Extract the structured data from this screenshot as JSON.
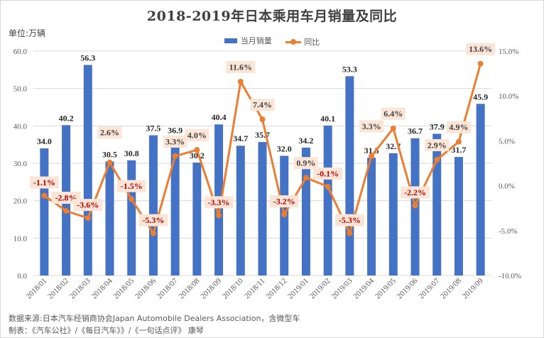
{
  "title": "2018-2019年日本乘用车月销量及同比",
  "unit_label": "单位:万辆",
  "legend": [
    {
      "name": "当月销量",
      "type": "bar"
    },
    {
      "name": "同比",
      "type": "line"
    }
  ],
  "colors": {
    "bar": "#4472c4",
    "line": "#ed7d31",
    "label_box": "#fbe5d6",
    "negative_label": "#c00000",
    "positive_label": "#404040",
    "grid": "#d9d9d9"
  },
  "footer": {
    "source": "数据来源:日本汽车经销商协会Japan Automobile Dealers Association，含微型车",
    "maker": "制表：《汽车公社》/《每日汽车》》/《一句话点评》 康琴"
  },
  "chart_data": {
    "type": "bar",
    "title": "2018-2019年日本乘用车月销量及同比",
    "xlabel": "",
    "ylabel": "单位:万辆",
    "categories": [
      "2018/01",
      "2018/02",
      "2018/03",
      "2018/04",
      "2018/05",
      "2018/06",
      "2018/07",
      "2018/08",
      "2018/09",
      "2018/10",
      "2018/11",
      "2018/12",
      "2019/01",
      "2019/02",
      "2019/03",
      "2019/04",
      "2019/05",
      "2019/06",
      "2019/07",
      "2019/08",
      "2019/09"
    ],
    "series": [
      {
        "name": "当月销量",
        "type": "bar",
        "axis": "left",
        "values": [
          34.0,
          40.2,
          56.3,
          30.5,
          30.8,
          37.5,
          36.9,
          30.2,
          40.4,
          34.7,
          35.7,
          32.0,
          34.2,
          40.1,
          53.3,
          31.5,
          32.7,
          36.7,
          37.9,
          31.7,
          45.9
        ],
        "labels": [
          "34.0",
          "40.2",
          "56.3",
          "30.5",
          "30.8",
          "37.5",
          "36.9",
          "30.2",
          "40.4",
          "34.7",
          "35.7",
          "32.0",
          "34.2",
          "40.1",
          "53.3",
          "31.5",
          "32.7",
          "36.7",
          "37.9",
          "31.7",
          "45.9"
        ]
      },
      {
        "name": "同比",
        "type": "line",
        "axis": "right",
        "values": [
          -1.1,
          -2.8,
          -3.6,
          2.6,
          -1.5,
          -5.3,
          3.3,
          4.0,
          -3.3,
          11.6,
          7.4,
          -3.2,
          0.9,
          -0.1,
          -5.3,
          3.3,
          6.4,
          -2.2,
          2.9,
          4.9,
          13.6
        ],
        "labels": [
          "-1.1%",
          "-2.8%",
          "-3.6%",
          "2.6%",
          "-1.5%",
          "-5.3%",
          "3.3%",
          "4.0%",
          "-3.3%",
          "11.6%",
          "7.4%",
          "-3.2%",
          "0.9%",
          "-0.1%",
          "-5.3%",
          "3.3%",
          "6.4%",
          "-2.2%",
          "2.9%",
          "4.9%",
          "13.6%"
        ]
      }
    ],
    "y_left": {
      "min": 0,
      "max": 60,
      "ticks": [
        "0.0",
        "10.0",
        "20.0",
        "30.0",
        "40.0",
        "50.0",
        "60.0"
      ]
    },
    "y_right": {
      "min": -10,
      "max": 15,
      "ticks": [
        "-10.0%",
        "-5.0%",
        "0.0%",
        "5.0%",
        "10.0%",
        "15.0%"
      ]
    },
    "grid": true,
    "legend_position": "top-center"
  }
}
